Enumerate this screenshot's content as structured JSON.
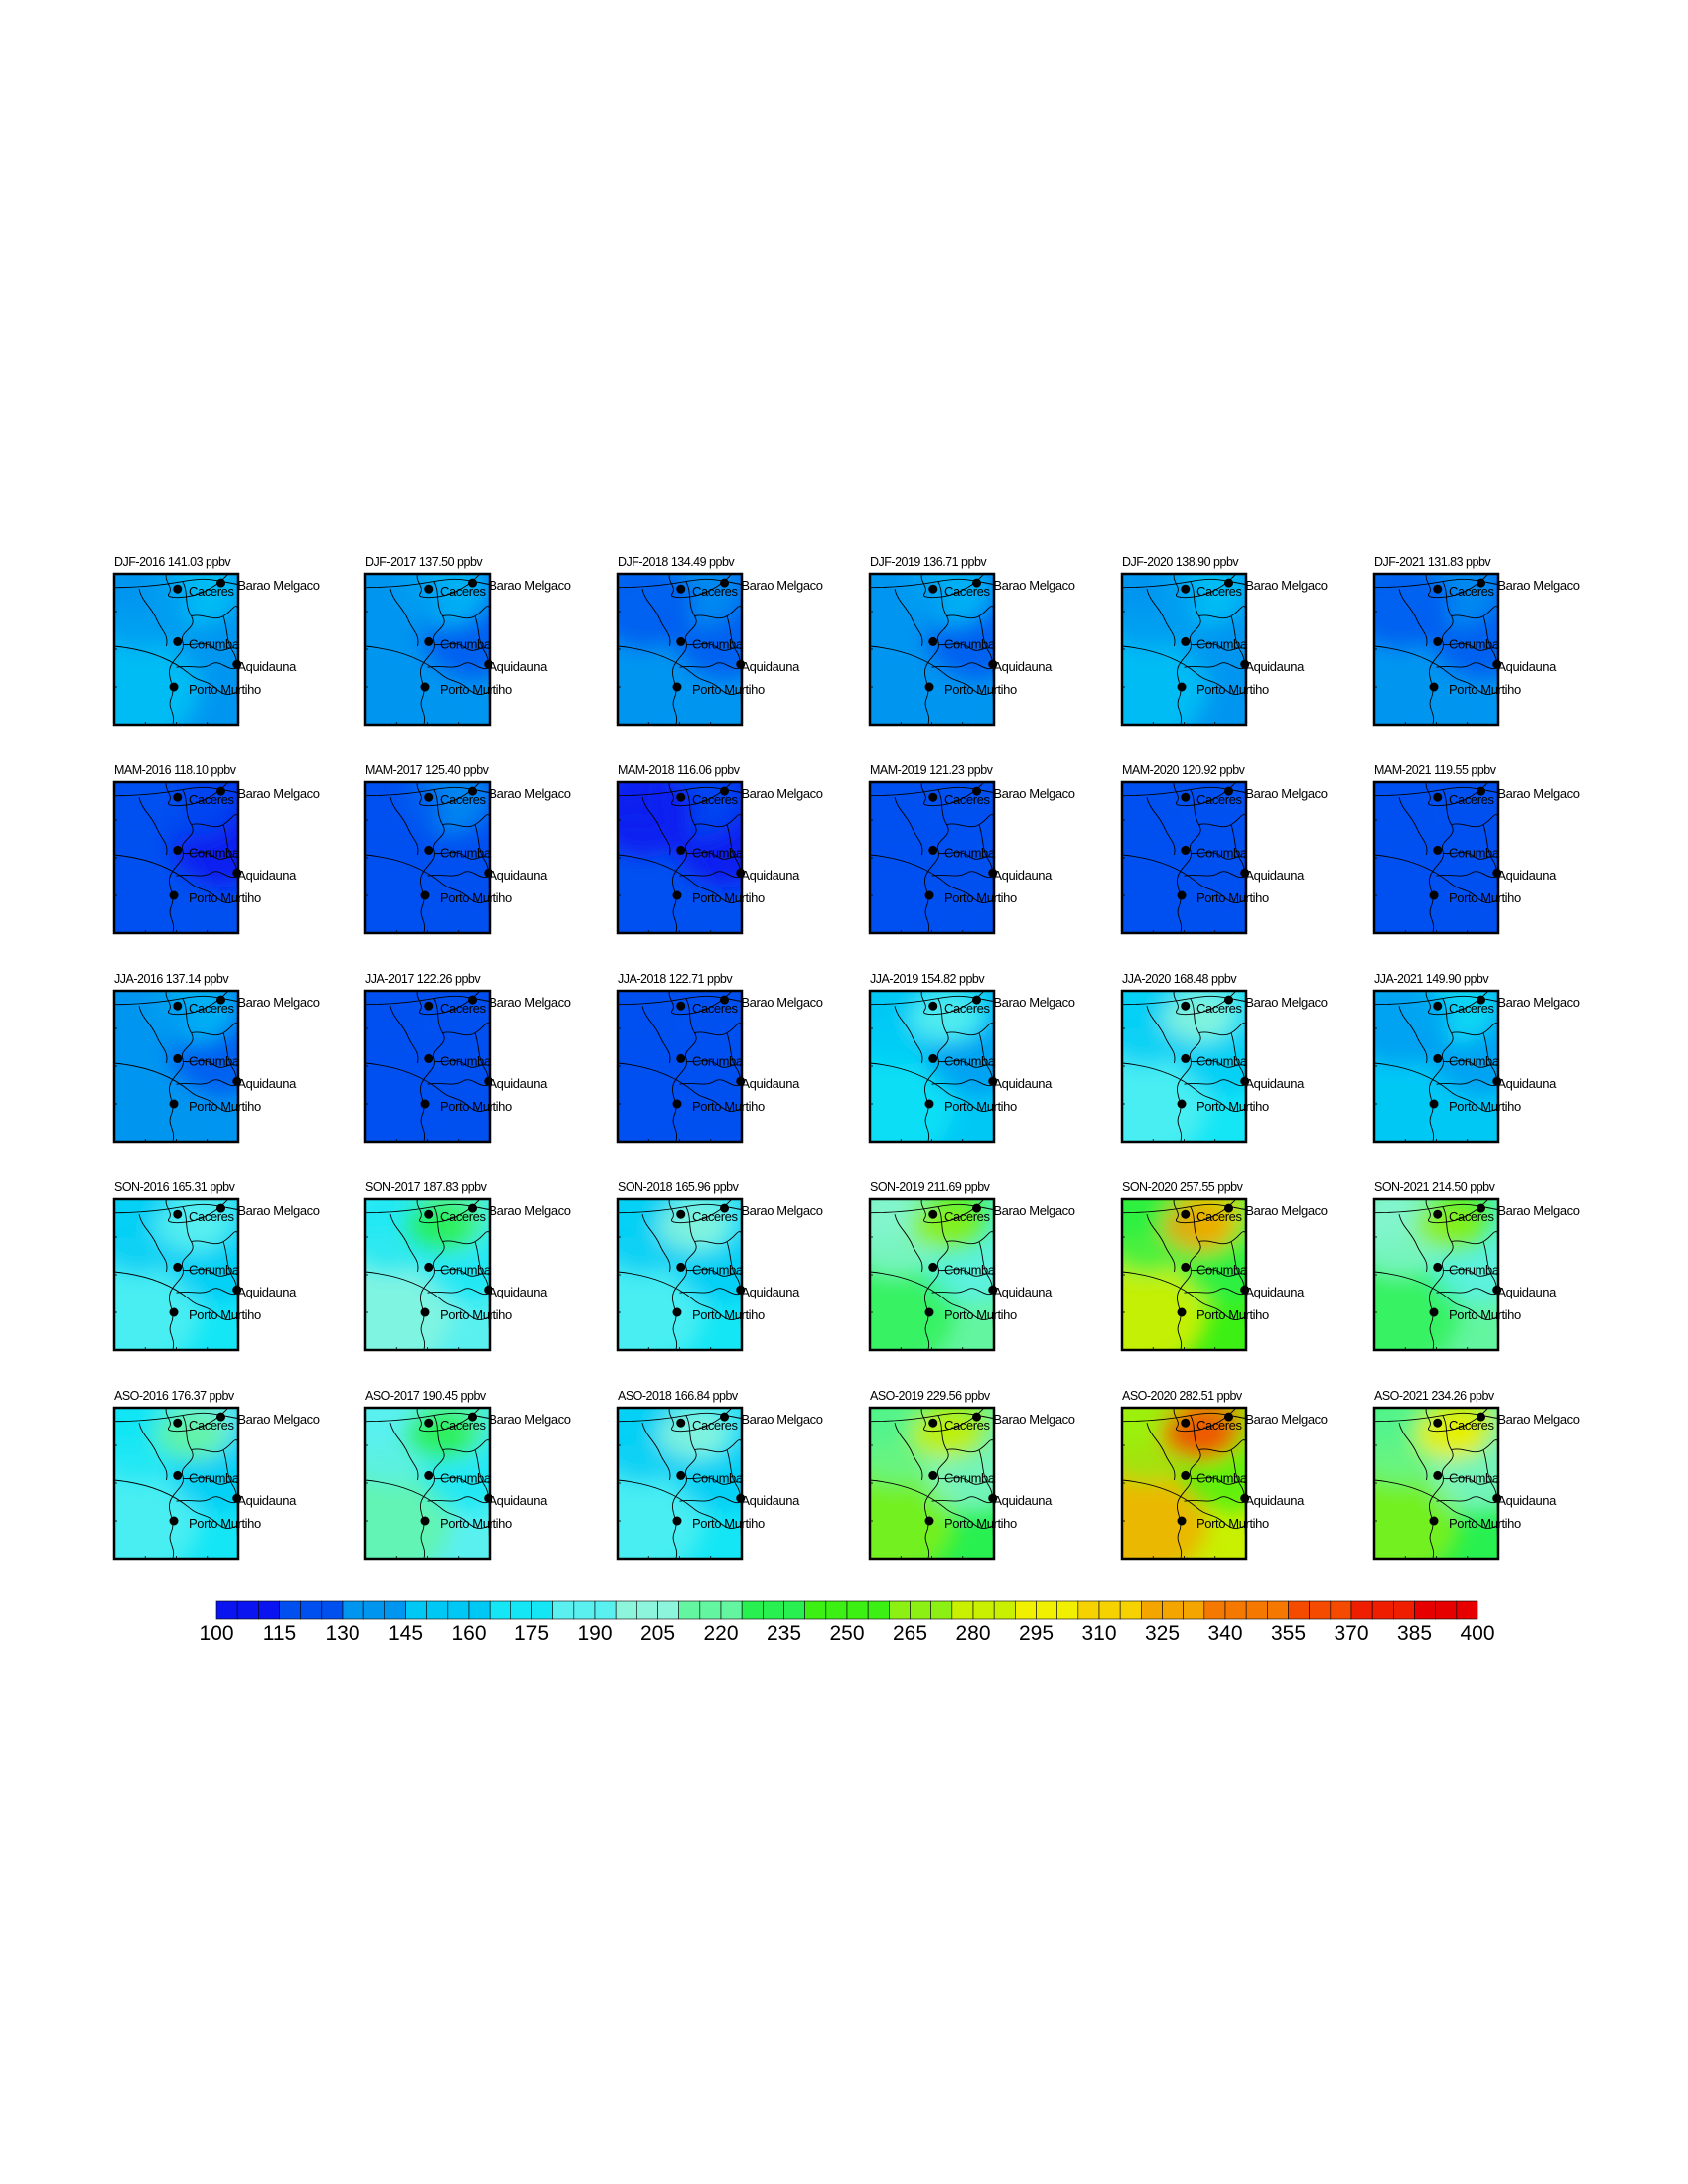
{
  "chart_data": {
    "type": "heatmap",
    "unit": "ppbv",
    "panels": [
      {
        "title": "DJF-2016 141.03 ppbv",
        "mean": 141.03
      },
      {
        "title": "DJF-2017 137.50 ppbv",
        "mean": 137.5
      },
      {
        "title": "DJF-2018 134.49 ppbv",
        "mean": 134.49
      },
      {
        "title": "DJF-2019 136.71 ppbv",
        "mean": 136.71
      },
      {
        "title": "DJF-2020 138.90 ppbv",
        "mean": 138.9
      },
      {
        "title": "DJF-2021 131.83 ppbv",
        "mean": 131.83
      },
      {
        "title": "MAM-2016 118.10 ppbv",
        "mean": 118.1
      },
      {
        "title": "MAM-2017 125.40 ppbv",
        "mean": 125.4
      },
      {
        "title": "MAM-2018 116.06 ppbv",
        "mean": 116.06
      },
      {
        "title": "MAM-2019 121.23 ppbv",
        "mean": 121.23
      },
      {
        "title": "MAM-2020 120.92 ppbv",
        "mean": 120.92
      },
      {
        "title": "MAM-2021 119.55 ppbv",
        "mean": 119.55
      },
      {
        "title": "JJA-2016 137.14 ppbv",
        "mean": 137.14
      },
      {
        "title": "JJA-2017 122.26 ppbv",
        "mean": 122.26
      },
      {
        "title": "JJA-2018 122.71 ppbv",
        "mean": 122.71
      },
      {
        "title": "JJA-2019 154.82 ppbv",
        "mean": 154.82
      },
      {
        "title": "JJA-2020 168.48 ppbv",
        "mean": 168.48
      },
      {
        "title": "JJA-2021 149.90 ppbv",
        "mean": 149.9
      },
      {
        "title": "SON-2016 165.31 ppbv",
        "mean": 165.31
      },
      {
        "title": "SON-2017 187.83 ppbv",
        "mean": 187.83
      },
      {
        "title": "SON-2018 165.96 ppbv",
        "mean": 165.96
      },
      {
        "title": "SON-2019 211.69 ppbv",
        "mean": 211.69
      },
      {
        "title": "SON-2020 257.55 ppbv",
        "mean": 257.55
      },
      {
        "title": "SON-2021 214.50 ppbv",
        "mean": 214.5
      },
      {
        "title": "ASO-2016 176.37 ppbv",
        "mean": 176.37
      },
      {
        "title": "ASO-2017 190.45 ppbv",
        "mean": 190.45
      },
      {
        "title": "ASO-2018 166.84 ppbv",
        "mean": 166.84
      },
      {
        "title": "ASO-2019 229.56 ppbv",
        "mean": 229.56
      },
      {
        "title": "ASO-2020 282.51 ppbv",
        "mean": 282.51
      },
      {
        "title": "ASO-2021 234.26 ppbv",
        "mean": 234.26
      }
    ],
    "cities": [
      "Barao Melgaco",
      "Caceres",
      "Corumba",
      "Aquidauna",
      "Porto Murtiho"
    ],
    "colorbar": {
      "min": 100,
      "max": 400,
      "step": 5,
      "tick_labels": [
        "100",
        "115",
        "130",
        "145",
        "160",
        "175",
        "190",
        "205",
        "220",
        "235",
        "250",
        "265",
        "280",
        "295",
        "310",
        "325",
        "340",
        "355",
        "370",
        "385",
        "400"
      ]
    },
    "colors": {
      "scale": [
        "#0a14f0",
        "#0050f0",
        "#0096f0",
        "#00c8f5",
        "#14e6f5",
        "#5af0f0",
        "#8cf5dc",
        "#64f5a0",
        "#28f050",
        "#3cf014",
        "#8cf014",
        "#c8f000",
        "#f0f000",
        "#f5d200",
        "#f5a500",
        "#f57800",
        "#f54b00",
        "#f01e00",
        "#e60000"
      ]
    }
  }
}
